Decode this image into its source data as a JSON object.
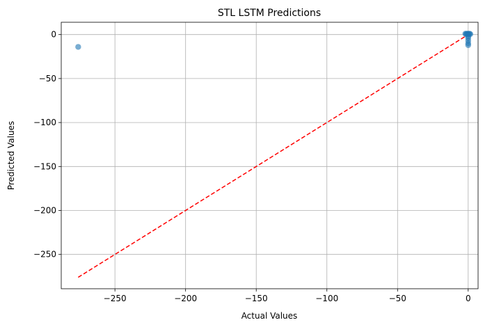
{
  "chart_data": {
    "type": "scatter",
    "title": "STL LSTM Predictions",
    "xlabel": "Actual Values",
    "ylabel": "Predicted Values",
    "xlim": [
      -288,
      7
    ],
    "ylim": [
      -289,
      14
    ],
    "x_ticks": [
      -250,
      -200,
      -150,
      -100,
      -50,
      0
    ],
    "y_ticks": [
      -250,
      -200,
      -150,
      -100,
      -50,
      0
    ],
    "x_tick_labels": [
      "−250",
      "−200",
      "−150",
      "−100",
      "−50",
      "0"
    ],
    "y_tick_labels": [
      "−250",
      "−200",
      "−150",
      "−100",
      "−50",
      "0"
    ],
    "grid": true,
    "points": [
      {
        "x": -276,
        "y": -14
      },
      {
        "x": -2,
        "y": 1
      },
      {
        "x": -1.5,
        "y": 0.5
      },
      {
        "x": -1,
        "y": 1
      },
      {
        "x": -0.5,
        "y": 0.5
      },
      {
        "x": 0,
        "y": 1
      },
      {
        "x": 0.5,
        "y": 0.5
      },
      {
        "x": 1,
        "y": 1
      },
      {
        "x": 1.5,
        "y": 0.5
      },
      {
        "x": 0,
        "y": -2
      },
      {
        "x": 0,
        "y": -4
      },
      {
        "x": 0,
        "y": -7
      },
      {
        "x": 0,
        "y": -10
      },
      {
        "x": 0,
        "y": -12
      }
    ],
    "reference_line": {
      "x": [
        -276,
        1
      ],
      "y": [
        -276,
        1
      ],
      "color": "#ff0000",
      "style": "dashed"
    },
    "point_color": "#1f77b4",
    "grid_color": "#b0b0b0"
  }
}
